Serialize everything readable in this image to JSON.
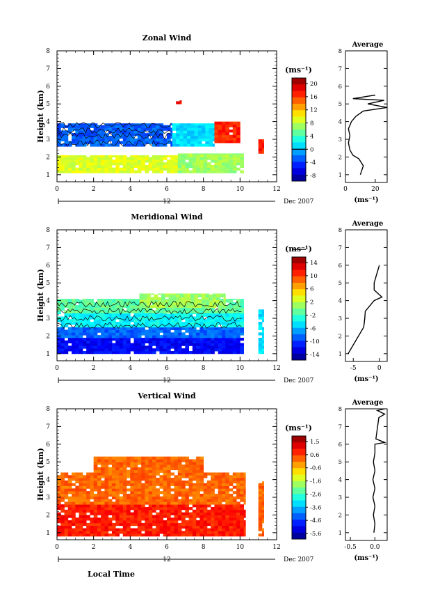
{
  "figure": {
    "xlabel": "Local Time",
    "date_label": "Dec 2007",
    "day_marker": "12",
    "colors": {
      "background": "#ffffff",
      "axis": "#000000",
      "contour": "#000000",
      "profile": "#000000"
    }
  },
  "chart_data": [
    {
      "type": "heatmap",
      "title": "Zonal Wind",
      "ylabel": "Height (km)",
      "xlabel": "",
      "x_ticks": [
        "0",
        "2",
        "4",
        "6",
        "8",
        "10",
        "12"
      ],
      "y_ticks": [
        "1",
        "2",
        "3",
        "4",
        "5",
        "6",
        "7",
        "8"
      ],
      "xlim": [
        0,
        12
      ],
      "ylim": [
        0.6,
        8
      ],
      "colorbar": {
        "unit": "(ms⁻¹)",
        "ticks": [
          "20",
          "16",
          "12",
          "8",
          "4",
          "0",
          "-4",
          "-8"
        ],
        "min": -10,
        "max": 22,
        "contour_level_label": "0"
      },
      "regions": [
        {
          "x": [
            0,
            6.6
          ],
          "y": [
            1.1,
            2.1
          ],
          "value": 9
        },
        {
          "x": [
            6.6,
            10.2
          ],
          "y": [
            1.1,
            2.2
          ],
          "value": 7
        },
        {
          "x": [
            0,
            6.3
          ],
          "y": [
            2.6,
            3.9
          ],
          "value": -3
        },
        {
          "x": [
            6.3,
            8.6
          ],
          "y": [
            2.6,
            3.9
          ],
          "value": 1
        },
        {
          "x": [
            8.6,
            10.0
          ],
          "y": [
            2.8,
            4.0
          ],
          "value": 17
        },
        {
          "x": [
            11.0,
            11.3
          ],
          "y": [
            2.2,
            3.0
          ],
          "value": 17
        },
        {
          "x": [
            6.5,
            6.8
          ],
          "y": [
            5.0,
            5.2
          ],
          "value": 18
        }
      ],
      "profile": {
        "title": "Average",
        "xlabel": "(ms⁻¹)",
        "x_ticks": [
          "0",
          "20"
        ],
        "xlim": [
          0,
          28
        ],
        "points": [
          [
            10,
            1.0
          ],
          [
            12,
            1.5
          ],
          [
            9,
            1.9
          ],
          [
            5,
            2.1
          ],
          [
            3,
            2.4
          ],
          [
            2,
            2.8
          ],
          [
            3,
            3.2
          ],
          [
            2,
            3.6
          ],
          [
            4,
            4.0
          ],
          [
            7,
            4.3
          ],
          [
            12,
            4.6
          ],
          [
            28,
            4.8
          ],
          [
            15,
            5.0
          ],
          [
            26,
            5.2
          ],
          [
            5,
            5.3
          ],
          [
            20,
            5.5
          ]
        ]
      }
    },
    {
      "type": "heatmap",
      "title": "Meridional Wind",
      "ylabel": "Height (km)",
      "xlabel": "",
      "x_ticks": [
        "0",
        "2",
        "4",
        "6",
        "8",
        "10",
        "12"
      ],
      "y_ticks": [
        "1",
        "2",
        "3",
        "4",
        "5",
        "6",
        "7",
        "8"
      ],
      "xlim": [
        0,
        12
      ],
      "ylim": [
        0.6,
        8
      ],
      "colorbar": {
        "unit": "(ms⁻¹)",
        "ticks": [
          "14",
          "10",
          "6",
          "2",
          "-2",
          "-6",
          "-10",
          "-14"
        ],
        "min": -16,
        "max": 16,
        "contour_level_label": "0"
      },
      "regions": [
        {
          "x": [
            0,
            10.2
          ],
          "y": [
            1.0,
            1.9
          ],
          "value": -12
        },
        {
          "x": [
            0,
            10.2
          ],
          "y": [
            1.9,
            2.5
          ],
          "value": -9
        },
        {
          "x": [
            0,
            10.2
          ],
          "y": [
            2.5,
            3.3
          ],
          "value": -4
        },
        {
          "x": [
            0,
            10.2
          ],
          "y": [
            3.3,
            4.1
          ],
          "value": -1
        },
        {
          "x": [
            4.5,
            9.2
          ],
          "y": [
            3.6,
            4.4
          ],
          "value": 1
        },
        {
          "x": [
            11.0,
            11.3
          ],
          "y": [
            1.0,
            3.5
          ],
          "value": -5
        }
      ],
      "profile": {
        "title": "Average",
        "xlabel": "(ms⁻¹)",
        "x_ticks": [
          "-5",
          "0"
        ],
        "xlim": [
          -6.5,
          1.5
        ],
        "points": [
          [
            -6,
            1.0
          ],
          [
            -5,
            1.5
          ],
          [
            -4,
            2.0
          ],
          [
            -3,
            2.5
          ],
          [
            -2.8,
            3.0
          ],
          [
            -2.7,
            3.4
          ],
          [
            -1,
            4.0
          ],
          [
            0.5,
            4.2
          ],
          [
            -1,
            4.6
          ],
          [
            -1,
            5.0
          ],
          [
            -0.5,
            5.5
          ],
          [
            0,
            6.0
          ]
        ]
      }
    },
    {
      "type": "heatmap",
      "title": "Vertical Wind",
      "ylabel": "Height (km)",
      "xlabel": "Local Time",
      "x_ticks": [
        "0",
        "2",
        "4",
        "6",
        "8",
        "10",
        "12"
      ],
      "y_ticks": [
        "1",
        "2",
        "3",
        "4",
        "5",
        "6",
        "7",
        "8"
      ],
      "xlim": [
        0,
        12
      ],
      "ylim": [
        0.6,
        8
      ],
      "colorbar": {
        "unit": "(ms⁻¹)",
        "ticks": [
          "1.5",
          "0.6",
          "-0.6",
          "-1.6",
          "-2.6",
          "-3.6",
          "-4.6",
          "-5.6"
        ],
        "min": -6,
        "max": 2,
        "contour_level_label": ""
      },
      "regions": [
        {
          "x": [
            0,
            10.3
          ],
          "y": [
            0.8,
            2.6
          ],
          "value": 0.8
        },
        {
          "x": [
            0,
            10.3
          ],
          "y": [
            2.6,
            4.4
          ],
          "value": 0.2
        },
        {
          "x": [
            2,
            8
          ],
          "y": [
            4.4,
            5.3
          ],
          "value": 0.2
        },
        {
          "x": [
            11.0,
            11.3
          ],
          "y": [
            0.8,
            3.9
          ],
          "value": 0.2
        }
      ],
      "profile": {
        "title": "Average",
        "xlabel": "(ms⁻¹)",
        "x_ticks": [
          "-0.5",
          "0.0"
        ],
        "xlim": [
          -0.6,
          0.25
        ],
        "points": [
          [
            -0.02,
            1.0
          ],
          [
            0.0,
            1.5
          ],
          [
            -0.03,
            2.0
          ],
          [
            0.0,
            2.5
          ],
          [
            -0.04,
            3.0
          ],
          [
            0.0,
            3.5
          ],
          [
            -0.04,
            4.0
          ],
          [
            0.0,
            4.5
          ],
          [
            -0.03,
            5.0
          ],
          [
            0.0,
            5.5
          ],
          [
            0.0,
            6.0
          ],
          [
            0.2,
            6.1
          ],
          [
            0.02,
            6.3
          ],
          [
            0.08,
            7.5
          ],
          [
            0.2,
            7.7
          ],
          [
            0.05,
            7.9
          ],
          [
            0.2,
            8.0
          ]
        ]
      }
    }
  ]
}
